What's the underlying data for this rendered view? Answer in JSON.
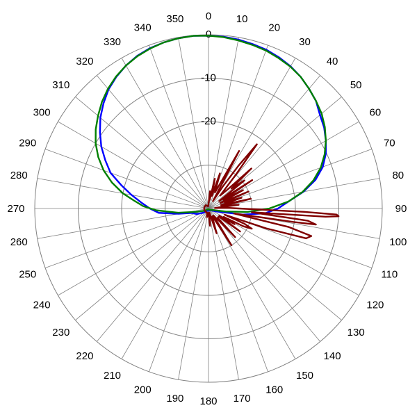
{
  "chart_data": {
    "type": "line",
    "subtype": "polar",
    "title": "",
    "angle_unit": "degrees",
    "angle_direction": "clockwise",
    "zero_angle_at": "top",
    "radial_range": [
      -40,
      0
    ],
    "radial_gridlines": [
      0,
      -10,
      -20,
      -30
    ],
    "radial_tick_labels": [
      "0",
      "-10",
      "-20"
    ],
    "angle_tick_labels": [
      "0",
      "10",
      "20",
      "30",
      "40",
      "50",
      "60",
      "70",
      "80",
      "90",
      "100",
      "110",
      "120",
      "130",
      "140",
      "150",
      "160",
      "170",
      "180",
      "190",
      "200",
      "210",
      "220",
      "230",
      "240",
      "250",
      "260",
      "270",
      "280",
      "290",
      "300",
      "310",
      "320",
      "330",
      "340",
      "350"
    ],
    "grid": true,
    "legend": "none",
    "series": [
      {
        "color": "#0000ff",
        "points": [
          [
            0,
            -0.2
          ],
          [
            5,
            -0.3
          ],
          [
            10,
            -0.5
          ],
          [
            15,
            -0.8
          ],
          [
            20,
            -1.1
          ],
          [
            25,
            -1.6
          ],
          [
            30,
            -2.2
          ],
          [
            35,
            -3.0
          ],
          [
            40,
            -4.0
          ],
          [
            45,
            -5.0
          ],
          [
            50,
            -6.5
          ],
          [
            55,
            -7.5
          ],
          [
            60,
            -8.8
          ],
          [
            65,
            -10.2
          ],
          [
            70,
            -12.0
          ],
          [
            75,
            -14.5
          ],
          [
            80,
            -17.8
          ],
          [
            85,
            -21.5
          ],
          [
            90,
            -24.0
          ],
          [
            95,
            -27.0
          ],
          [
            100,
            -32.0
          ],
          [
            110,
            -38
          ],
          [
            120,
            -39
          ],
          [
            140,
            -39.5
          ],
          [
            170,
            -39.5
          ],
          [
            200,
            -39.5
          ],
          [
            230,
            -38.5
          ],
          [
            245,
            -37
          ],
          [
            255,
            -36
          ],
          [
            260,
            -33
          ],
          [
            265,
            -28.5
          ],
          [
            270,
            -26.5
          ],
          [
            275,
            -24.5
          ],
          [
            280,
            -22.0
          ],
          [
            285,
            -19.2
          ],
          [
            290,
            -16.0
          ],
          [
            295,
            -13.8
          ],
          [
            300,
            -11.5
          ],
          [
            305,
            -9.5
          ],
          [
            310,
            -7.5
          ],
          [
            315,
            -5.8
          ],
          [
            320,
            -4.2
          ],
          [
            325,
            -3.0
          ],
          [
            330,
            -2.0
          ],
          [
            335,
            -1.2
          ],
          [
            340,
            -0.7
          ],
          [
            345,
            -0.4
          ],
          [
            350,
            -0.2
          ],
          [
            355,
            -0.1
          ],
          [
            360,
            -0.2
          ]
        ]
      },
      {
        "color": "#008000",
        "points": [
          [
            0,
            -0.2
          ],
          [
            5,
            -0.4
          ],
          [
            10,
            -0.7
          ],
          [
            15,
            -1.0
          ],
          [
            20,
            -1.3
          ],
          [
            25,
            -1.8
          ],
          [
            30,
            -2.3
          ],
          [
            35,
            -3.0
          ],
          [
            40,
            -4.0
          ],
          [
            45,
            -5.0
          ],
          [
            50,
            -6.0
          ],
          [
            55,
            -7.3
          ],
          [
            60,
            -8.8
          ],
          [
            65,
            -10.5
          ],
          [
            70,
            -12.5
          ],
          [
            75,
            -15.0
          ],
          [
            80,
            -18.0
          ],
          [
            85,
            -21.5
          ],
          [
            90,
            -26.0
          ],
          [
            95,
            -31.0
          ],
          [
            100,
            -36.0
          ],
          [
            110,
            -39
          ],
          [
            130,
            -39.5
          ],
          [
            170,
            -39.8
          ],
          [
            210,
            -39.8
          ],
          [
            240,
            -39
          ],
          [
            255,
            -37
          ],
          [
            262,
            -33
          ],
          [
            268,
            -28
          ],
          [
            272,
            -25
          ],
          [
            276,
            -22.8
          ],
          [
            280,
            -20.0
          ],
          [
            285,
            -17.0
          ],
          [
            290,
            -14.3
          ],
          [
            295,
            -12.0
          ],
          [
            300,
            -10.0
          ],
          [
            305,
            -8.3
          ],
          [
            310,
            -6.8
          ],
          [
            315,
            -5.3
          ],
          [
            320,
            -4.0
          ],
          [
            325,
            -2.9
          ],
          [
            330,
            -2.0
          ],
          [
            335,
            -1.3
          ],
          [
            340,
            -0.8
          ],
          [
            345,
            -0.4
          ],
          [
            350,
            -0.2
          ],
          [
            355,
            -0.1
          ],
          [
            360,
            -0.2
          ]
        ]
      },
      {
        "color": "#800000",
        "points": [
          [
            0,
            -39
          ],
          [
            5,
            -36
          ],
          [
            8,
            -38
          ],
          [
            12,
            -33
          ],
          [
            15,
            -37
          ],
          [
            18,
            -31.5
          ],
          [
            22,
            -36
          ],
          [
            28,
            -25
          ],
          [
            31,
            -38
          ],
          [
            33,
            -34
          ],
          [
            35,
            -28
          ],
          [
            37,
            -21.5
          ],
          [
            39,
            -30
          ],
          [
            42,
            -36
          ],
          [
            45,
            -34
          ],
          [
            47,
            -26.5
          ],
          [
            49,
            -33
          ],
          [
            52,
            -29.5
          ],
          [
            55,
            -37
          ],
          [
            57,
            -28
          ],
          [
            59,
            -36
          ],
          [
            62,
            -31
          ],
          [
            65,
            -37
          ],
          [
            67,
            -30
          ],
          [
            69,
            -36
          ],
          [
            72,
            -32
          ],
          [
            75,
            -37
          ],
          [
            77,
            -30
          ],
          [
            80,
            -37
          ],
          [
            83,
            -33
          ],
          [
            86,
            -38.5
          ],
          [
            88,
            -35.5
          ],
          [
            90,
            -33
          ],
          [
            92,
            -18
          ],
          [
            92.7,
            -10.5
          ],
          [
            93.4,
            -10
          ],
          [
            94,
            -13
          ],
          [
            95,
            -30
          ],
          [
            97,
            -17
          ],
          [
            98.5,
            -15
          ],
          [
            99,
            -20
          ],
          [
            101,
            -34
          ],
          [
            103,
            -21
          ],
          [
            105,
            -15.5
          ],
          [
            107,
            -16.5
          ],
          [
            109,
            -26
          ],
          [
            111,
            -36
          ],
          [
            113,
            -31
          ],
          [
            115,
            -29
          ],
          [
            117,
            -31
          ],
          [
            119,
            -36
          ],
          [
            121,
            -33
          ],
          [
            124,
            -37
          ],
          [
            126,
            -31
          ],
          [
            128,
            -37
          ],
          [
            135,
            -37
          ],
          [
            137,
            -31
          ],
          [
            139,
            -36
          ],
          [
            145,
            -38
          ],
          [
            148,
            -30
          ],
          [
            151,
            -37
          ],
          [
            155,
            -38
          ],
          [
            162,
            -34
          ],
          [
            167,
            -39
          ],
          [
            175,
            -36
          ],
          [
            180,
            -39
          ],
          [
            190,
            -38
          ],
          [
            200,
            -39
          ],
          [
            220,
            -39
          ],
          [
            250,
            -39
          ],
          [
            270,
            -39
          ],
          [
            290,
            -39
          ],
          [
            320,
            -39
          ],
          [
            350,
            -39.5
          ],
          [
            360,
            -39
          ]
        ]
      }
    ]
  }
}
